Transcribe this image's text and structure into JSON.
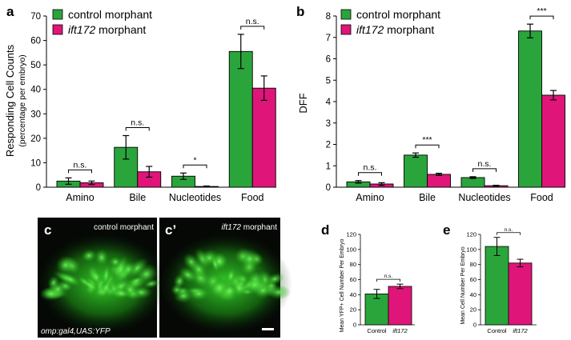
{
  "colors": {
    "control": "#2aa53c",
    "ift172": "#e0157a",
    "microscopy_glow": "#22c81a"
  },
  "chart_data": [
    {
      "panel": "a",
      "type": "bar",
      "ylabel": "Responding Cell Counts",
      "ylabel_sub": "(percentage per embryo)",
      "ylim": [
        0,
        70
      ],
      "yticks": [
        "0",
        "10",
        "20",
        "30",
        "40",
        "50",
        "60",
        "70"
      ],
      "categories": [
        "Amino",
        "Bile",
        "Nucleotides",
        "Food"
      ],
      "series": [
        {
          "name": "control morphant",
          "values": [
            2.5,
            16.3,
            4.5,
            55.5
          ],
          "errors": [
            1.3,
            4.8,
            1.3,
            7.0
          ]
        },
        {
          "name": "morphant",
          "name_italic": "ift172",
          "values": [
            1.8,
            6.3,
            0.3,
            40.5
          ],
          "errors": [
            0.7,
            2.2,
            0.2,
            5.0
          ]
        }
      ],
      "significance": [
        "n.s.",
        "n.s.",
        "*",
        "n.s."
      ],
      "legend": "top-left"
    },
    {
      "panel": "b",
      "type": "bar",
      "ylabel": "DFF",
      "ylim": [
        0,
        8
      ],
      "yticks": [
        "0",
        "1",
        "2",
        "3",
        "4",
        "5",
        "6",
        "7",
        "8"
      ],
      "categories": [
        "Amino",
        "Bile",
        "Nucleotides",
        "Food"
      ],
      "series": [
        {
          "name": "control morphant",
          "values": [
            0.25,
            1.5,
            0.45,
            7.3
          ],
          "errors": [
            0.06,
            0.1,
            0.04,
            0.32
          ]
        },
        {
          "name": "morphant",
          "name_italic": "ift172",
          "values": [
            0.15,
            0.6,
            0.07,
            4.3
          ],
          "errors": [
            0.06,
            0.05,
            0.02,
            0.22
          ]
        }
      ],
      "significance": [
        "n.s.",
        "***",
        "n.s.",
        "***"
      ],
      "legend": "top-left"
    },
    {
      "panel": "d",
      "type": "bar",
      "ylabel": "Mean YFP+ Cell Number Per Embryo",
      "ylim": [
        0,
        120
      ],
      "yticks": [
        "0",
        "20",
        "40",
        "60",
        "80",
        "100",
        "120"
      ],
      "categories": [
        "Control",
        "ift172"
      ],
      "values": [
        41,
        51
      ],
      "errors": [
        6,
        3
      ],
      "significance": [
        "n.s."
      ]
    },
    {
      "panel": "e",
      "type": "bar",
      "ylabel": "Mean Cell Number Per Embryo",
      "ylim": [
        0,
        120
      ],
      "yticks": [
        "0",
        "20",
        "40",
        "60",
        "80",
        "100",
        "120"
      ],
      "categories": [
        "Control",
        "ift172"
      ],
      "values": [
        104,
        82
      ],
      "errors": [
        12,
        5
      ],
      "significance": [
        "n.s."
      ]
    }
  ],
  "images": {
    "c": {
      "letter": "c",
      "label": "control morphant",
      "caption": "omp:gal4,UAS:YFP"
    },
    "c_prime": {
      "letter": "c’",
      "label": "morphant",
      "label_italic": "ift172"
    }
  }
}
